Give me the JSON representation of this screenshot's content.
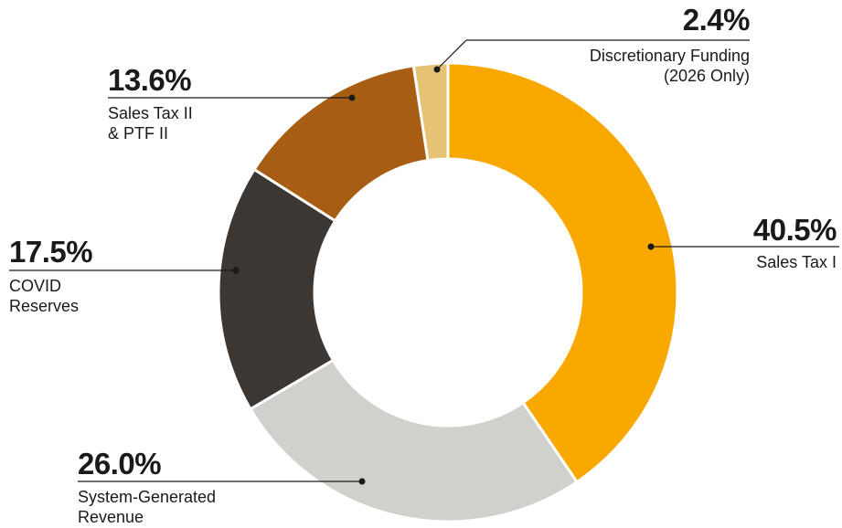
{
  "chart_data": {
    "type": "donut",
    "categories": [
      "Sales Tax I",
      "System-Generated\nRevenue",
      "COVID\nReserves",
      "Sales Tax II\n& PTF II",
      "Discretionary Funding\n(2026 Only)"
    ],
    "values": [
      40.5,
      26.0,
      17.5,
      13.6,
      2.4
    ],
    "value_labels": [
      "40.5%",
      "26.0%",
      "17.5%",
      "13.6%",
      "2.4%"
    ],
    "colors": [
      "#f9a800",
      "#d0d0cc",
      "#3d3733",
      "#a85e12",
      "#e6c274"
    ]
  }
}
